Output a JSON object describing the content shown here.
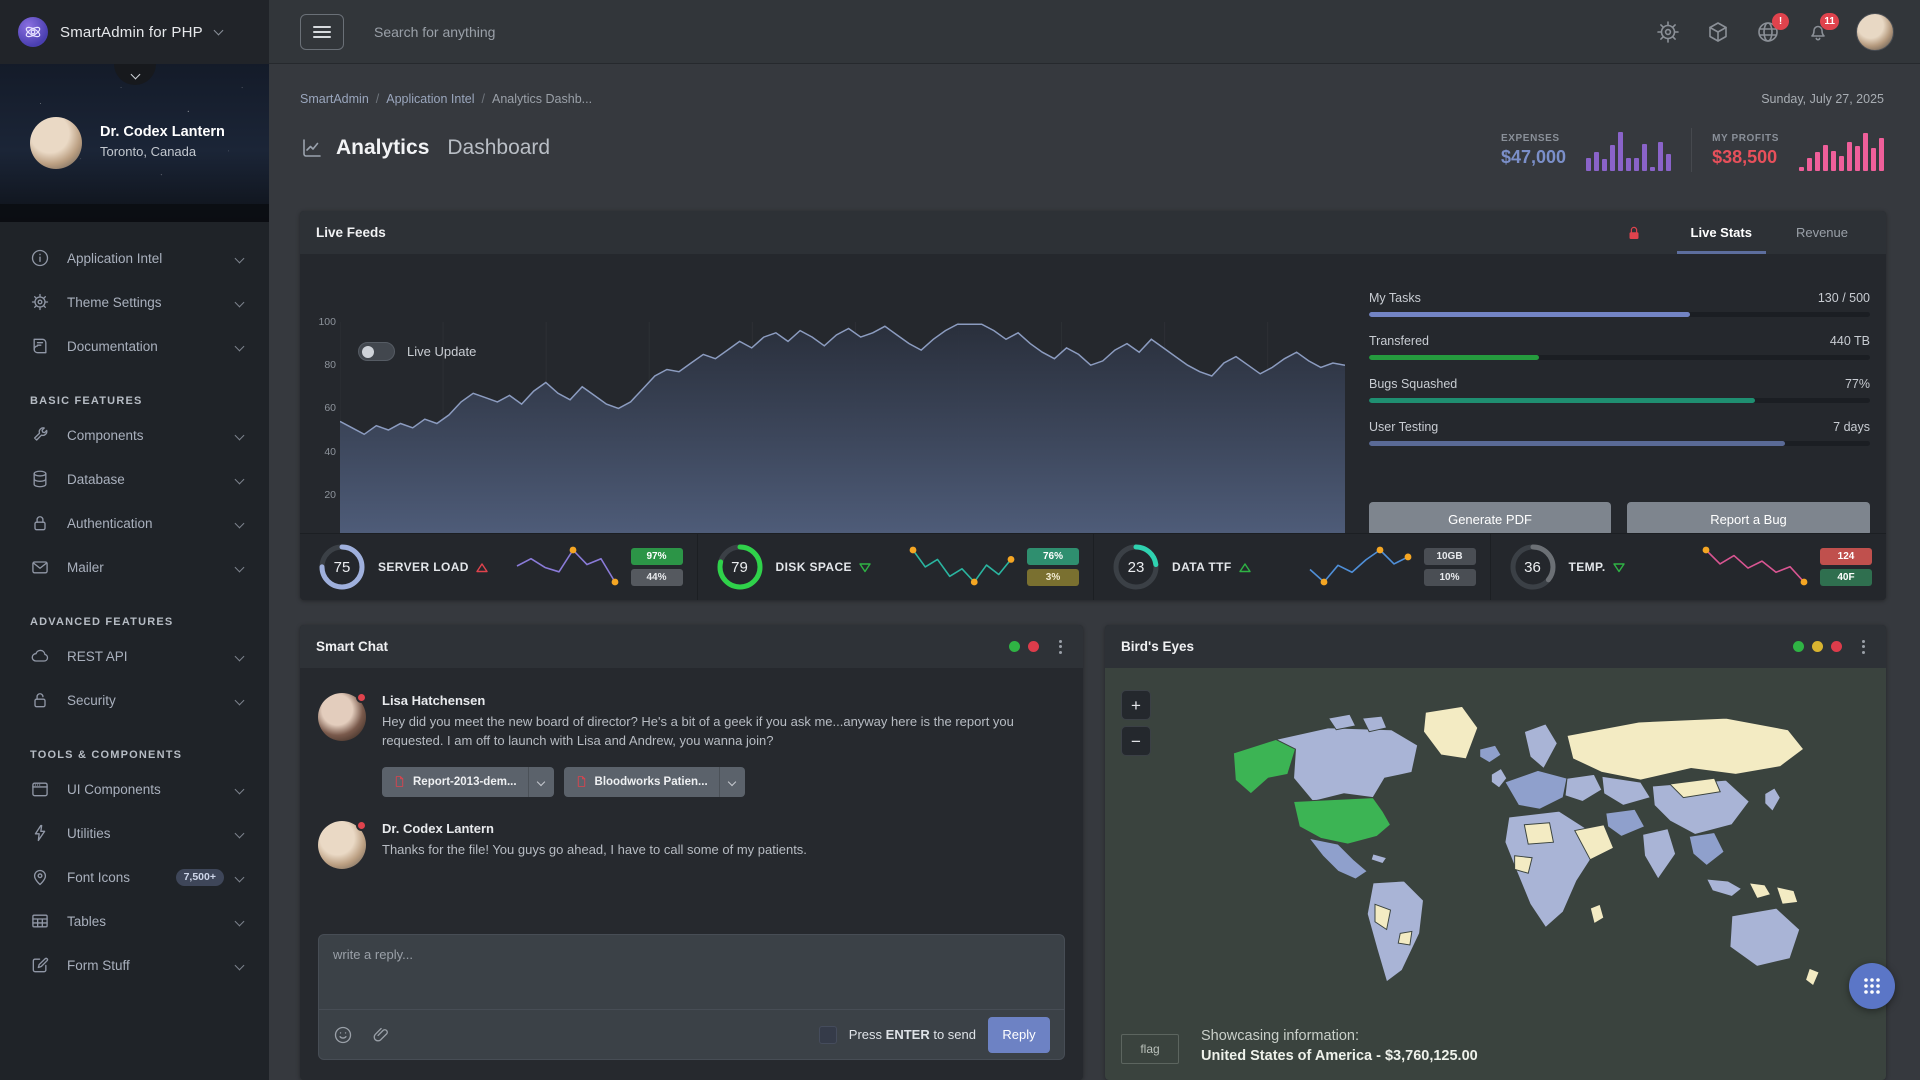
{
  "theme": {
    "accent": "#7384c4",
    "green": "#2fb344",
    "yellow": "#d9b430",
    "red": "#dd3c4b",
    "orange": "#f5a623",
    "sea": "#3a433e",
    "land": "#a9b4d6",
    "land_alt": "#8fa0cc",
    "land_hl": "#f3ebc3",
    "land_sel": "#3cb454"
  },
  "topbar": {
    "brand": "SmartAdmin for PHP",
    "search_placeholder": "Search for anything",
    "globe_badge": "!",
    "bell_badge": "11"
  },
  "profile": {
    "name": "Dr. Codex Lantern",
    "location": "Toronto, Canada"
  },
  "sidebar": {
    "headers": [
      "BASIC FEATURES",
      "ADVANCED FEATURES",
      "TOOLS & COMPONENTS"
    ],
    "items": [
      {
        "label": "Application Intel"
      },
      {
        "label": "Theme Settings"
      },
      {
        "label": "Documentation"
      },
      {
        "label": "Components"
      },
      {
        "label": "Database"
      },
      {
        "label": "Authentication"
      },
      {
        "label": "Mailer"
      },
      {
        "label": "REST API"
      },
      {
        "label": "Security"
      },
      {
        "label": "UI Components"
      },
      {
        "label": "Utilities"
      },
      {
        "label": "Font Icons",
        "badge": "7,500+"
      },
      {
        "label": "Tables"
      },
      {
        "label": "Form Stuff"
      }
    ]
  },
  "breadcrumb": {
    "items": [
      "SmartAdmin",
      "Application Intel",
      "Analytics Dashb..."
    ],
    "date": "Sunday, July 27, 2025"
  },
  "page_title": {
    "bold": "Analytics",
    "light": "Dashboard"
  },
  "kpis": {
    "expenses": {
      "label": "EXPENSES",
      "value": "$47,000",
      "color": "#7b8fc9",
      "bar_color": "#8a63c9",
      "bars": [
        30,
        45,
        28,
        62,
        92,
        30,
        32,
        65,
        10,
        68,
        40
      ]
    },
    "profits": {
      "label": "MY PROFITS",
      "value": "$38,500",
      "color": "#e8505b",
      "bar_color": "#ef5f9a",
      "bars": [
        10,
        32,
        45,
        62,
        48,
        35,
        68,
        60,
        90,
        55,
        78
      ]
    }
  },
  "live_feeds": {
    "title": "Live Feeds",
    "tabs": [
      {
        "label": "Live Stats"
      },
      {
        "label": "Revenue"
      }
    ],
    "active_tab": 0,
    "toggle_label": "Live Update",
    "progress": [
      {
        "label": "My Tasks",
        "value": "130 / 500",
        "pct": 64,
        "color": "#7384c4"
      },
      {
        "label": "Transfered",
        "value": "440 TB",
        "pct": 34,
        "color": "#259b3e"
      },
      {
        "label": "Bugs Squashed",
        "value": "77%",
        "pct": 77,
        "color": "#1f8f71"
      },
      {
        "label": "User Testing",
        "value": "7 days",
        "pct": 83,
        "color": "#5a6a96"
      }
    ],
    "buttons": [
      "Generate PDF",
      "Report a Bug"
    ]
  },
  "chart_data": {
    "type": "area",
    "title": "Live Feeds",
    "legend": "none",
    "grid": "faint-vertical",
    "xlim": [
      0,
      195
    ],
    "ylim": [
      0,
      100
    ],
    "x_ticks": [
      0,
      20,
      40,
      60,
      80,
      100,
      120,
      140,
      160,
      180
    ],
    "y_ticks": [
      0,
      20,
      40,
      60,
      80,
      100
    ],
    "line_color": "#8c9cc0",
    "fill_top": "#2a303d",
    "fill_bottom": "#4f5d7a",
    "values": [
      54,
      51,
      48,
      52,
      50,
      53,
      51,
      55,
      53,
      57,
      63,
      67,
      65,
      63,
      66,
      62,
      68,
      72,
      67,
      64,
      70,
      66,
      62,
      60,
      63,
      69,
      75,
      78,
      77,
      81,
      85,
      83,
      87,
      91,
      88,
      93,
      95,
      91,
      96,
      93,
      89,
      94,
      97,
      93,
      95,
      98,
      94,
      90,
      87,
      92,
      96,
      99,
      99,
      99,
      96,
      92,
      95,
      90,
      86,
      83,
      88,
      85,
      80,
      82,
      87,
      90,
      86,
      92,
      88,
      84,
      80,
      77,
      75,
      81,
      84,
      80,
      76,
      79,
      83,
      86,
      82,
      79,
      81,
      80
    ]
  },
  "quick_stats": [
    {
      "value": "75",
      "label": "SERVER LOAD",
      "trend": "up",
      "trend_color": "#e0434d",
      "arc_pct": 75,
      "arc_color": "#9fb0dd",
      "spark_color": "#8a7bd8",
      "spark": [
        48,
        58,
        46,
        40,
        70,
        50,
        58,
        26
      ],
      "dots": [
        4,
        7
      ],
      "badges": [
        {
          "text": "97%",
          "bg": "#2c9547",
          "fg": "#ffffff"
        },
        {
          "text": "44%",
          "bg": "#55595f",
          "fg": "#e8eaed"
        }
      ]
    },
    {
      "value": "79",
      "label": "DISK SPACE",
      "trend": "down",
      "trend_color": "#2fb344",
      "arc_pct": 79,
      "arc_color": "#2fd24a",
      "spark_color": "#2ab5a0",
      "spark": [
        68,
        50,
        58,
        40,
        48,
        34,
        52,
        42,
        58
      ],
      "dots": [
        0,
        5,
        8
      ],
      "badges": [
        {
          "text": "76%",
          "bg": "#2f8f6f",
          "fg": "#ffffff"
        },
        {
          "text": "3%",
          "bg": "#7a7030",
          "fg": "#f0ead0"
        }
      ]
    },
    {
      "value": "23",
      "label": "DATA TTF",
      "trend": "up",
      "trend_color": "#2fb344",
      "arc_pct": 23,
      "arc_color": "#2fd2b0",
      "spark_color": "#4f8fd8",
      "spark": [
        44,
        26,
        50,
        40,
        58,
        72,
        52,
        62
      ],
      "dots": [
        1,
        5,
        7
      ],
      "badges": [
        {
          "text": "10GB",
          "bg": "#4a4e54",
          "fg": "#e8eaed"
        },
        {
          "text": "10%",
          "bg": "#4a4e54",
          "fg": "#e8eaed"
        }
      ]
    },
    {
      "value": "36",
      "label": "TEMP.",
      "trend": "down",
      "trend_color": "#2fb344",
      "arc_pct": 36,
      "arc_color": "#6c7075",
      "spark_color": "#d95592",
      "spark": [
        70,
        50,
        62,
        44,
        54,
        38,
        46,
        24
      ],
      "dots": [
        0,
        7
      ],
      "badges": [
        {
          "text": "124",
          "bg": "#c0504d",
          "fg": "#ffffff"
        },
        {
          "text": "40F",
          "bg": "#2f6f4f",
          "fg": "#ffffff"
        }
      ]
    }
  ],
  "chat": {
    "title": "Smart Chat",
    "messages": [
      {
        "name": "Lisa Hatchensen",
        "text": "Hey did you meet the new board of director? He's a bit of a geek if you ask me...anyway here is the report you requested. I am off to launch with Lisa and Andrew, you wanna join?",
        "files": [
          "Report-2013-dem...",
          "Bloodworks Patien..."
        ]
      },
      {
        "name": "Dr. Codex Lantern",
        "text": "Thanks for the file! You guys go ahead, I have to call some of my patients."
      }
    ],
    "reply_placeholder": "write a reply...",
    "send_hint_pre": "Press",
    "send_hint_key": "ENTER",
    "send_hint_post": "to send",
    "reply_button": "Reply"
  },
  "map_panel": {
    "title": "Bird's Eyes",
    "zoom_in": "+",
    "zoom_out": "−",
    "flag_label": "flag",
    "info_label": "Showcasing information:",
    "info_value": "United States of America - $3,760,125.00",
    "palette": {
      "sea": "#3a433e",
      "land": "#a9b4d6",
      "land_alt": "#8fa0cc",
      "highlight": "#f3ebc3",
      "selected": "#3cb454"
    }
  }
}
